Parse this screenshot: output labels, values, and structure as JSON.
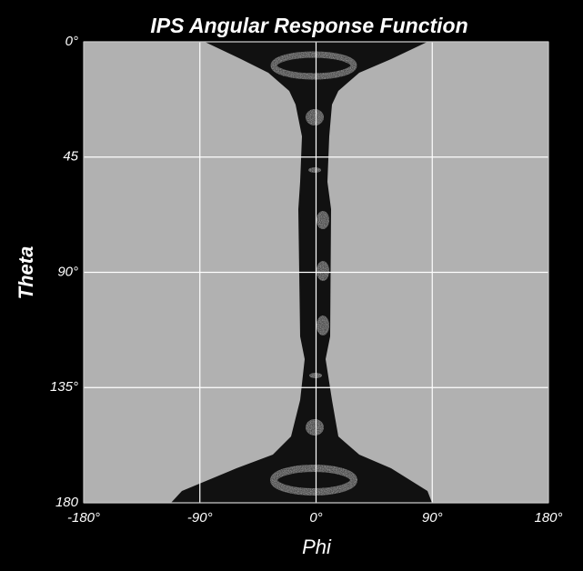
{
  "chart_data": {
    "type": "heatmap",
    "title": "IPS Angular Response Function",
    "x_label": "Phi",
    "y_label": "Theta",
    "xlim": [
      -180,
      180
    ],
    "ylim": [
      0,
      180
    ],
    "y_inverted": true,
    "grid": true,
    "grid_color": "#ffffff",
    "xticks": [
      {
        "value": -180,
        "label": "-180°"
      },
      {
        "value": -90,
        "label": "-90°"
      },
      {
        "value": 0,
        "label": "0°"
      },
      {
        "value": 90,
        "label": "90°"
      },
      {
        "value": 180,
        "label": "180°"
      }
    ],
    "yticks": [
      {
        "value": 0,
        "label": "0°"
      },
      {
        "value": 45,
        "label": "45"
      },
      {
        "value": 90,
        "label": "90°"
      },
      {
        "value": 135,
        "label": "135°"
      },
      {
        "value": 180,
        "label": "180"
      }
    ]
  }
}
